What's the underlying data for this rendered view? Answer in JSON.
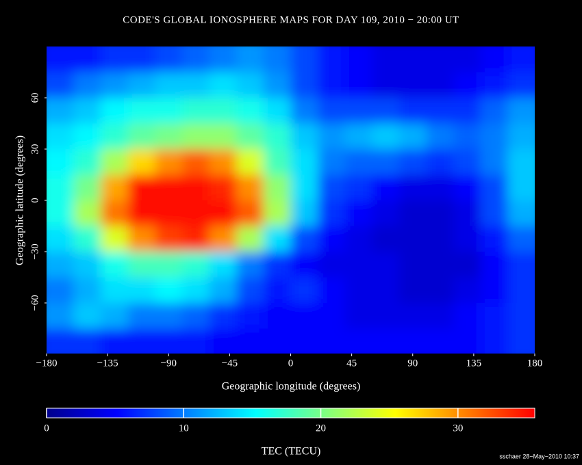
{
  "chart_data": {
    "type": "heatmap",
    "title": "CODE'S GLOBAL IONOSPHERE MAPS FOR DAY 109, 2010 − 20:00 UT",
    "x_label": "Geographic longitude (degrees)",
    "y_label": "Geographic latitude (degrees)",
    "colorbar_label": "TEC (TECU)",
    "footer": "sschaer 28−May−2010 10:37",
    "xlim": [
      -180,
      180
    ],
    "xticks": [
      {
        "value": -180,
        "label": "−180"
      },
      {
        "value": -135,
        "label": "−135"
      },
      {
        "value": -90,
        "label": "−90"
      },
      {
        "value": -45,
        "label": "−45"
      },
      0,
      45,
      90,
      135,
      180
    ],
    "ylim": [
      -90,
      90
    ],
    "yticks": [
      {
        "value": -60,
        "label": "−60"
      },
      {
        "value": -30,
        "label": "−30"
      },
      0,
      30,
      60
    ],
    "clim": [
      0,
      35.6
    ],
    "cticks": [
      0,
      10,
      20,
      30
    ],
    "colorscale": [
      "#00008c",
      "#0000ff",
      "#0080ff",
      "#00ffff",
      "#80ff80",
      "#ffff00",
      "#ff8000",
      "#ff0000"
    ],
    "x": [
      -170,
      -150,
      -130,
      -110,
      -90,
      -70,
      -50,
      -30,
      -10,
      10,
      30,
      50,
      70,
      90,
      110,
      130,
      150,
      170
    ],
    "y": [
      82.5,
      67.5,
      52.5,
      37.5,
      22.5,
      7.5,
      -7.5,
      -22.5,
      -37.5,
      -52.5,
      -67.5,
      -82.5
    ],
    "z": [
      [
        6,
        6,
        7,
        7,
        8,
        9,
        10,
        11,
        10,
        8,
        6,
        5,
        4,
        4,
        4,
        4,
        5,
        6
      ],
      [
        8,
        10,
        11,
        12,
        13,
        13,
        14,
        13,
        11,
        8,
        6,
        5,
        4,
        4,
        4,
        5,
        6,
        7
      ],
      [
        12,
        13,
        15,
        16,
        16,
        17,
        17,
        16,
        14,
        10,
        8,
        8,
        8,
        7,
        7,
        7,
        9,
        11
      ],
      [
        14,
        15,
        17,
        19,
        20,
        21,
        21,
        19,
        17,
        13,
        11,
        12,
        13,
        12,
        10,
        9,
        10,
        12
      ],
      [
        15,
        17,
        22,
        27,
        30,
        32,
        30,
        24,
        18,
        14,
        10,
        9,
        9,
        8,
        7,
        8,
        10,
        13
      ],
      [
        16,
        20,
        29,
        35,
        35,
        35,
        34,
        30,
        21,
        14,
        8,
        7,
        5,
        4,
        4,
        5,
        8,
        13
      ],
      [
        16,
        22,
        31,
        35,
        35,
        35,
        35,
        32,
        22,
        13,
        7,
        5,
        4,
        3,
        3,
        4,
        8,
        12
      ],
      [
        14,
        17,
        24,
        30,
        33,
        34,
        30,
        22,
        14,
        8,
        5,
        4,
        3,
        3,
        3,
        4,
        6,
        9
      ],
      [
        12,
        13,
        16,
        18,
        18,
        17,
        14,
        10,
        7,
        5,
        4,
        4,
        4,
        3,
        3,
        3,
        5,
        7
      ],
      [
        10,
        12,
        14,
        14,
        15,
        14,
        12,
        8,
        6,
        7,
        5,
        4,
        4,
        3,
        3,
        4,
        5,
        7
      ],
      [
        11,
        13,
        12,
        10,
        10,
        9,
        7,
        6,
        5,
        5,
        5,
        4,
        4,
        4,
        4,
        5,
        6,
        7
      ],
      [
        7,
        7,
        6,
        6,
        6,
        6,
        5,
        5,
        5,
        5,
        5,
        5,
        5,
        5,
        5,
        5,
        6,
        7
      ]
    ]
  }
}
